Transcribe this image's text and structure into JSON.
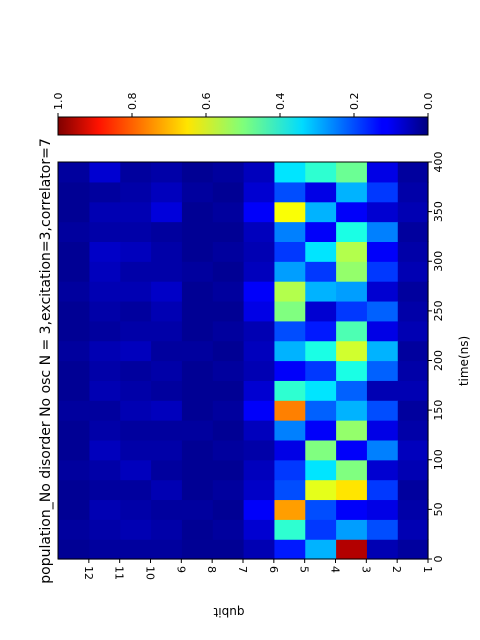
{
  "chart_data": {
    "type": "heatmap",
    "title": "population_No disorder No osc  N =  3,excitation=3,correlator=7",
    "xlabel": "time(ns)",
    "ylabel": "qubit",
    "xlim": [
      0,
      400
    ],
    "x_ticks": [
      "0",
      "50",
      "100",
      "150",
      "200",
      "250",
      "300",
      "350",
      "400"
    ],
    "y_ticks": [
      "1",
      "2",
      "3",
      "4",
      "5",
      "6",
      "7",
      "8",
      "9",
      "10",
      "11",
      "12"
    ],
    "colormap": "jet",
    "colorbar": {
      "range": [
        0,
        1
      ],
      "ticks": [
        "0.0",
        "0.2",
        "0.4",
        "0.6",
        "0.8",
        "1.0"
      ]
    },
    "time_bins": [
      0,
      20,
      40,
      60,
      80,
      100,
      120,
      140,
      160,
      180,
      200,
      220,
      240,
      260,
      280,
      300,
      320,
      340,
      360,
      380
    ],
    "rows": [
      {
        "qubit": 1,
        "values": [
          0.03,
          0.05,
          0.04,
          0.03,
          0.05,
          0.06,
          0.04,
          0.03,
          0.05,
          0.04,
          0.03,
          0.05,
          0.04,
          0.03,
          0.05,
          0.04,
          0.03,
          0.05,
          0.04,
          0.03
        ]
      },
      {
        "qubit": 2,
        "values": [
          0.05,
          0.2,
          0.1,
          0.18,
          0.08,
          0.25,
          0.1,
          0.2,
          0.05,
          0.22,
          0.3,
          0.1,
          0.22,
          0.08,
          0.18,
          0.12,
          0.25,
          0.08,
          0.18,
          0.1
        ]
      },
      {
        "qubit": 3,
        "values": [
          0.95,
          0.28,
          0.12,
          0.65,
          0.5,
          0.12,
          0.52,
          0.3,
          0.22,
          0.4,
          0.58,
          0.45,
          0.18,
          0.28,
          0.52,
          0.55,
          0.4,
          0.12,
          0.3,
          0.48
        ]
      },
      {
        "qubit": 4,
        "values": [
          0.3,
          0.18,
          0.2,
          0.6,
          0.35,
          0.5,
          0.12,
          0.22,
          0.35,
          0.18,
          0.4,
          0.15,
          0.08,
          0.3,
          0.18,
          0.35,
          0.12,
          0.3,
          0.1,
          0.42
        ]
      },
      {
        "qubit": 5,
        "values": [
          0.15,
          0.42,
          0.72,
          0.2,
          0.18,
          0.1,
          0.25,
          0.75,
          0.42,
          0.12,
          0.3,
          0.2,
          0.5,
          0.55,
          0.28,
          0.18,
          0.25,
          0.62,
          0.2,
          0.35
        ]
      },
      {
        "qubit": 6,
        "values": [
          0.05,
          0.08,
          0.12,
          0.07,
          0.06,
          0.04,
          0.06,
          0.12,
          0.08,
          0.05,
          0.06,
          0.05,
          0.1,
          0.12,
          0.06,
          0.05,
          0.06,
          0.12,
          0.08,
          0.06
        ]
      },
      {
        "qubit": 7,
        "values": [
          0.02,
          0.03,
          0.02,
          0.03,
          0.02,
          0.03,
          0.02,
          0.03,
          0.02,
          0.03,
          0.02,
          0.03,
          0.02,
          0.03,
          0.02,
          0.03,
          0.02,
          0.03,
          0.02,
          0.03
        ]
      },
      {
        "qubit": 8,
        "values": [
          0.02,
          0.02,
          0.03,
          0.02,
          0.02,
          0.02,
          0.03,
          0.02,
          0.02,
          0.02,
          0.03,
          0.02,
          0.02,
          0.02,
          0.03,
          0.02,
          0.02,
          0.02,
          0.03,
          0.02
        ]
      },
      {
        "qubit": 9,
        "values": [
          0.03,
          0.04,
          0.03,
          0.05,
          0.03,
          0.04,
          0.03,
          0.06,
          0.03,
          0.04,
          0.03,
          0.04,
          0.05,
          0.07,
          0.04,
          0.04,
          0.03,
          0.09,
          0.06,
          0.04
        ]
      },
      {
        "qubit": 10,
        "values": [
          0.03,
          0.05,
          0.04,
          0.03,
          0.06,
          0.04,
          0.03,
          0.05,
          0.04,
          0.03,
          0.06,
          0.04,
          0.03,
          0.05,
          0.04,
          0.06,
          0.04,
          0.05,
          0.04,
          0.03
        ]
      },
      {
        "qubit": 11,
        "values": [
          0.03,
          0.04,
          0.05,
          0.03,
          0.04,
          0.06,
          0.04,
          0.03,
          0.05,
          0.04,
          0.05,
          0.03,
          0.04,
          0.05,
          0.06,
          0.07,
          0.04,
          0.05,
          0.03,
          0.08
        ]
      },
      {
        "qubit": 12,
        "values": [
          0.02,
          0.03,
          0.02,
          0.02,
          0.03,
          0.02,
          0.02,
          0.03,
          0.02,
          0.02,
          0.03,
          0.02,
          0.02,
          0.03,
          0.02,
          0.02,
          0.03,
          0.02,
          0.02,
          0.03
        ]
      }
    ]
  }
}
